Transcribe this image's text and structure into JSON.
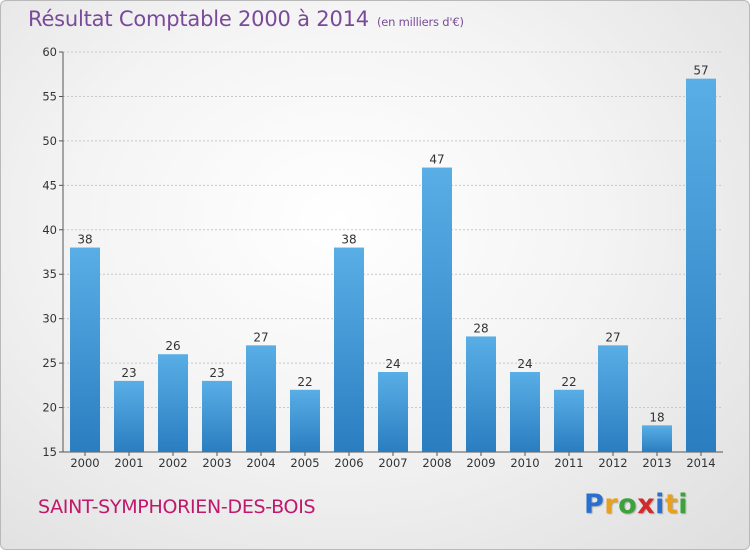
{
  "header": {
    "title": "Résultat Comptable 2000 à 2014",
    "subtitle": "(en milliers d'€)"
  },
  "footer": {
    "commune": "SAINT-SYMPHORIEN-DES-BOIS",
    "logo_letters": [
      "P",
      "r",
      "o",
      "x",
      "i",
      "t",
      "i"
    ],
    "logo_colors": [
      "#2a6fd0",
      "#e8a020",
      "#3ca23c",
      "#d02a2a",
      "#2a6fd0",
      "#e8a020",
      "#3ca23c"
    ]
  },
  "chart_data": {
    "type": "bar",
    "title": "Résultat Comptable 2000 à 2014",
    "subtitle": "(en milliers d'€)",
    "categories": [
      "2000",
      "2001",
      "2002",
      "2003",
      "2004",
      "2005",
      "2006",
      "2007",
      "2008",
      "2009",
      "2010",
      "2011",
      "2012",
      "2013",
      "2014"
    ],
    "values": [
      38,
      23,
      26,
      23,
      27,
      22,
      38,
      24,
      47,
      28,
      24,
      22,
      27,
      18,
      57
    ],
    "ylim": [
      15,
      60
    ],
    "yticks": [
      15,
      20,
      25,
      30,
      35,
      40,
      45,
      50,
      55,
      60
    ],
    "grid": true,
    "colors": {
      "bar_light": "#5aaee6",
      "bar_dark": "#2a7ec0",
      "grid": "#c8c8c8",
      "axis": "#555555"
    }
  }
}
